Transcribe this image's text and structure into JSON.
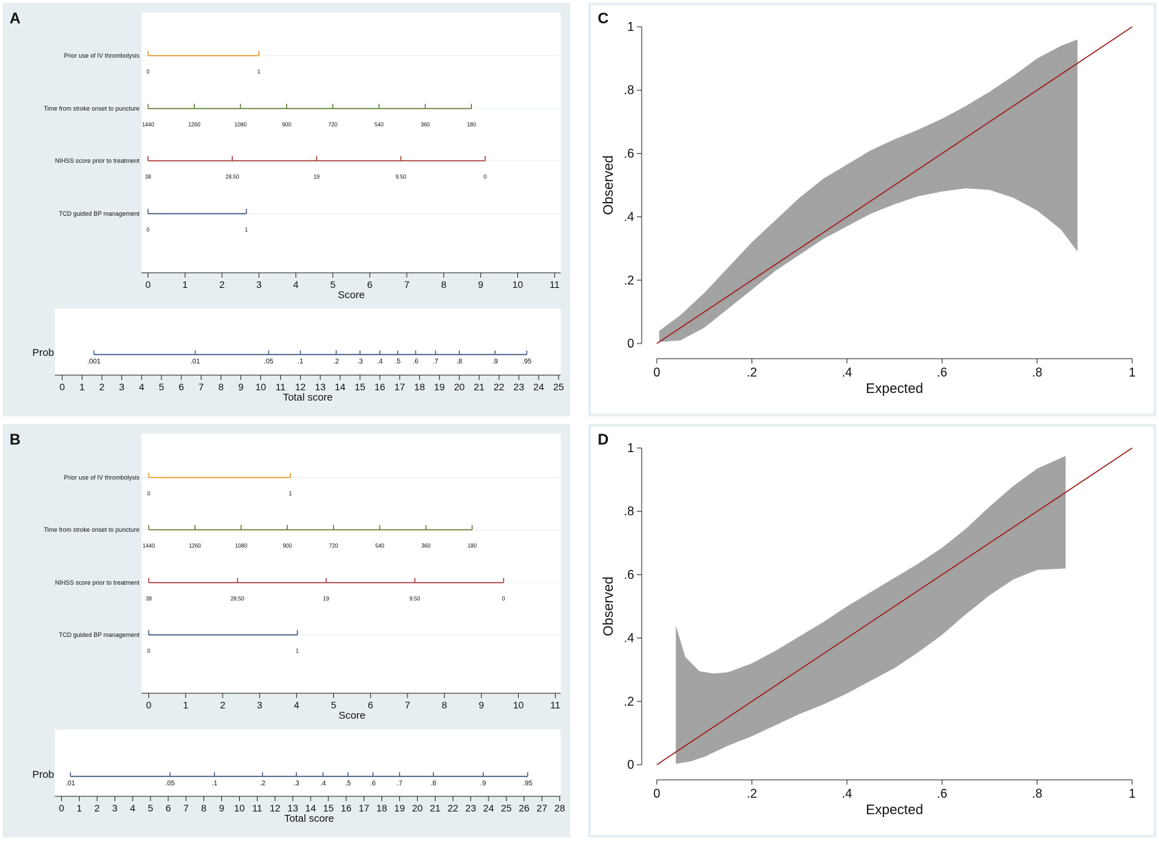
{
  "colors": {
    "panel_bg": "#e6eef2",
    "plot_bg": "#ffffff",
    "orange": "#e8901a",
    "green": "#5b7a2d",
    "red": "#a63232",
    "blue": "#2f4f79",
    "prob": "#2f4f79",
    "ci_band": "#a3a3a3",
    "diag": "#9b1c1c"
  },
  "chart_data": [
    {
      "panel": "A",
      "type": "nomogram",
      "label": "A",
      "score_axis": {
        "label": "Score",
        "ticks": [
          "0",
          "1",
          "2",
          "3",
          "4",
          "5",
          "6",
          "7",
          "8",
          "9",
          "10",
          "11"
        ]
      },
      "predictors": [
        {
          "name": "Prior use of IV thrombolysis",
          "color_key": "orange",
          "points": [
            0,
            3.0
          ],
          "labels": [
            "0",
            "1"
          ]
        },
        {
          "name": "Time from stroke onset to puncture",
          "color_key": "green",
          "points": [
            0,
            1.25,
            2.5,
            3.75,
            5.0,
            6.25,
            7.5,
            8.75
          ],
          "labels": [
            "1440",
            "1260",
            "1080",
            "900",
            "720",
            "540",
            "360",
            "180"
          ]
        },
        {
          "name": "NIHSS score prior to treatment",
          "color_key": "red",
          "points": [
            0,
            2.28,
            4.56,
            6.84,
            9.12
          ],
          "labels": [
            "38",
            "28.50",
            "19",
            "9.50",
            "0"
          ]
        },
        {
          "name": "TCD guided BP management",
          "color_key": "blue",
          "points": [
            0,
            2.66
          ],
          "labels": [
            "0",
            "1"
          ]
        }
      ],
      "prob": {
        "label": "Prob",
        "labels": [
          ".001",
          ".01",
          ".05",
          ".1",
          ".2",
          ".3",
          ".4",
          ".5",
          ".6",
          ".7",
          ".8",
          ".9",
          ".95"
        ],
        "at_total": [
          1.6,
          6.7,
          10.4,
          12.0,
          13.8,
          15.0,
          16.0,
          16.9,
          17.8,
          18.8,
          20.0,
          21.8,
          23.4
        ]
      },
      "total_axis": {
        "label": "Total score",
        "ticks": [
          "0",
          "1",
          "2",
          "3",
          "4",
          "5",
          "6",
          "7",
          "8",
          "9",
          "10",
          "11",
          "12",
          "13",
          "14",
          "15",
          "16",
          "17",
          "18",
          "19",
          "20",
          "21",
          "22",
          "23",
          "24",
          "25"
        ]
      }
    },
    {
      "panel": "B",
      "type": "nomogram",
      "label": "B",
      "score_axis": {
        "label": "Score",
        "ticks": [
          "0",
          "1",
          "2",
          "3",
          "4",
          "5",
          "6",
          "7",
          "8",
          "9",
          "10",
          "11"
        ]
      },
      "predictors": [
        {
          "name": "Prior use of IV thrombolysis",
          "color_key": "orange",
          "points": [
            0,
            3.83
          ],
          "labels": [
            "0",
            "1"
          ]
        },
        {
          "name": "Time from stroke onset to puncture",
          "color_key": "green",
          "points": [
            0,
            1.25,
            2.5,
            3.75,
            5.0,
            6.25,
            7.5,
            8.75
          ],
          "labels": [
            "1440",
            "1260",
            "1080",
            "900",
            "720",
            "540",
            "360",
            "180"
          ]
        },
        {
          "name": "NIHSS score prior to treatment",
          "color_key": "red",
          "points": [
            0,
            2.4,
            4.8,
            7.2,
            9.6
          ],
          "labels": [
            "38",
            "28.50",
            "19",
            "9.50",
            "0"
          ]
        },
        {
          "name": "TCD guided BP management",
          "color_key": "blue",
          "points": [
            0,
            4.02
          ],
          "labels": [
            "0",
            "1"
          ]
        }
      ],
      "prob": {
        "label": "Prob",
        "labels": [
          ".01",
          ".05",
          ".1",
          ".2",
          ".3",
          ".4",
          ".5",
          ".6",
          ".7",
          ".8",
          ".9",
          ".95"
        ],
        "at_total": [
          0.5,
          6.1,
          8.6,
          11.3,
          13.2,
          14.7,
          16.1,
          17.5,
          19.0,
          20.9,
          23.7,
          26.2
        ]
      },
      "total_axis": {
        "label": "Total score",
        "ticks": [
          "0",
          "1",
          "2",
          "3",
          "4",
          "5",
          "6",
          "7",
          "8",
          "9",
          "10",
          "11",
          "12",
          "13",
          "14",
          "15",
          "16",
          "17",
          "18",
          "19",
          "20",
          "21",
          "22",
          "23",
          "24",
          "25",
          "26",
          "27",
          "28"
        ]
      }
    },
    {
      "panel": "C",
      "type": "area",
      "label": "C",
      "title": "",
      "xlabel": "Expected",
      "ylabel": "Observed",
      "xlim": [
        0,
        1
      ],
      "ylim": [
        0,
        1
      ],
      "x_ticks": [
        0,
        0.2,
        0.4,
        0.6,
        0.8,
        1
      ],
      "y_ticks": [
        0,
        0.2,
        0.4,
        0.6,
        0.8,
        1
      ],
      "tick_labels": [
        "0",
        ".2",
        ".4",
        ".6",
        ".8",
        "1"
      ],
      "diagonal": [
        [
          0,
          0
        ],
        [
          1,
          1
        ]
      ],
      "band_upper": [
        [
          0.005,
          0.04
        ],
        [
          0.05,
          0.09
        ],
        [
          0.1,
          0.16
        ],
        [
          0.15,
          0.24
        ],
        [
          0.2,
          0.32
        ],
        [
          0.25,
          0.39
        ],
        [
          0.3,
          0.46
        ],
        [
          0.35,
          0.52
        ],
        [
          0.4,
          0.565
        ],
        [
          0.45,
          0.61
        ],
        [
          0.5,
          0.645
        ],
        [
          0.55,
          0.675
        ],
        [
          0.6,
          0.71
        ],
        [
          0.65,
          0.75
        ],
        [
          0.7,
          0.795
        ],
        [
          0.75,
          0.845
        ],
        [
          0.8,
          0.9
        ],
        [
          0.85,
          0.94
        ],
        [
          0.885,
          0.96
        ]
      ],
      "band_lower": [
        [
          0.885,
          0.29
        ],
        [
          0.85,
          0.36
        ],
        [
          0.8,
          0.42
        ],
        [
          0.75,
          0.46
        ],
        [
          0.7,
          0.485
        ],
        [
          0.65,
          0.49
        ],
        [
          0.6,
          0.48
        ],
        [
          0.55,
          0.465
        ],
        [
          0.5,
          0.44
        ],
        [
          0.45,
          0.41
        ],
        [
          0.4,
          0.37
        ],
        [
          0.35,
          0.33
        ],
        [
          0.3,
          0.28
        ],
        [
          0.25,
          0.23
        ],
        [
          0.2,
          0.17
        ],
        [
          0.15,
          0.11
        ],
        [
          0.1,
          0.05
        ],
        [
          0.05,
          0.01
        ],
        [
          0.005,
          0.005
        ]
      ]
    },
    {
      "panel": "D",
      "type": "area",
      "label": "D",
      "title": "",
      "xlabel": "Expected",
      "ylabel": "Observed",
      "xlim": [
        0,
        1
      ],
      "ylim": [
        0,
        1
      ],
      "x_ticks": [
        0,
        0.2,
        0.4,
        0.6,
        0.8,
        1
      ],
      "y_ticks": [
        0,
        0.2,
        0.4,
        0.6,
        0.8,
        1
      ],
      "tick_labels": [
        "0",
        ".2",
        ".4",
        ".6",
        ".8",
        "1"
      ],
      "diagonal": [
        [
          0,
          0
        ],
        [
          1,
          1
        ]
      ],
      "band_upper": [
        [
          0.04,
          0.44
        ],
        [
          0.06,
          0.34
        ],
        [
          0.09,
          0.295
        ],
        [
          0.12,
          0.288
        ],
        [
          0.15,
          0.292
        ],
        [
          0.2,
          0.32
        ],
        [
          0.25,
          0.36
        ],
        [
          0.3,
          0.405
        ],
        [
          0.35,
          0.45
        ],
        [
          0.4,
          0.5
        ],
        [
          0.45,
          0.545
        ],
        [
          0.5,
          0.59
        ],
        [
          0.55,
          0.635
        ],
        [
          0.6,
          0.685
        ],
        [
          0.65,
          0.745
        ],
        [
          0.7,
          0.815
        ],
        [
          0.75,
          0.88
        ],
        [
          0.8,
          0.935
        ],
        [
          0.86,
          0.975
        ]
      ],
      "band_lower": [
        [
          0.86,
          0.62
        ],
        [
          0.8,
          0.615
        ],
        [
          0.75,
          0.585
        ],
        [
          0.7,
          0.535
        ],
        [
          0.65,
          0.475
        ],
        [
          0.6,
          0.41
        ],
        [
          0.55,
          0.355
        ],
        [
          0.5,
          0.305
        ],
        [
          0.45,
          0.265
        ],
        [
          0.4,
          0.225
        ],
        [
          0.35,
          0.19
        ],
        [
          0.3,
          0.16
        ],
        [
          0.25,
          0.125
        ],
        [
          0.2,
          0.09
        ],
        [
          0.15,
          0.06
        ],
        [
          0.1,
          0.025
        ],
        [
          0.07,
          0.01
        ],
        [
          0.04,
          0.003
        ]
      ]
    }
  ]
}
